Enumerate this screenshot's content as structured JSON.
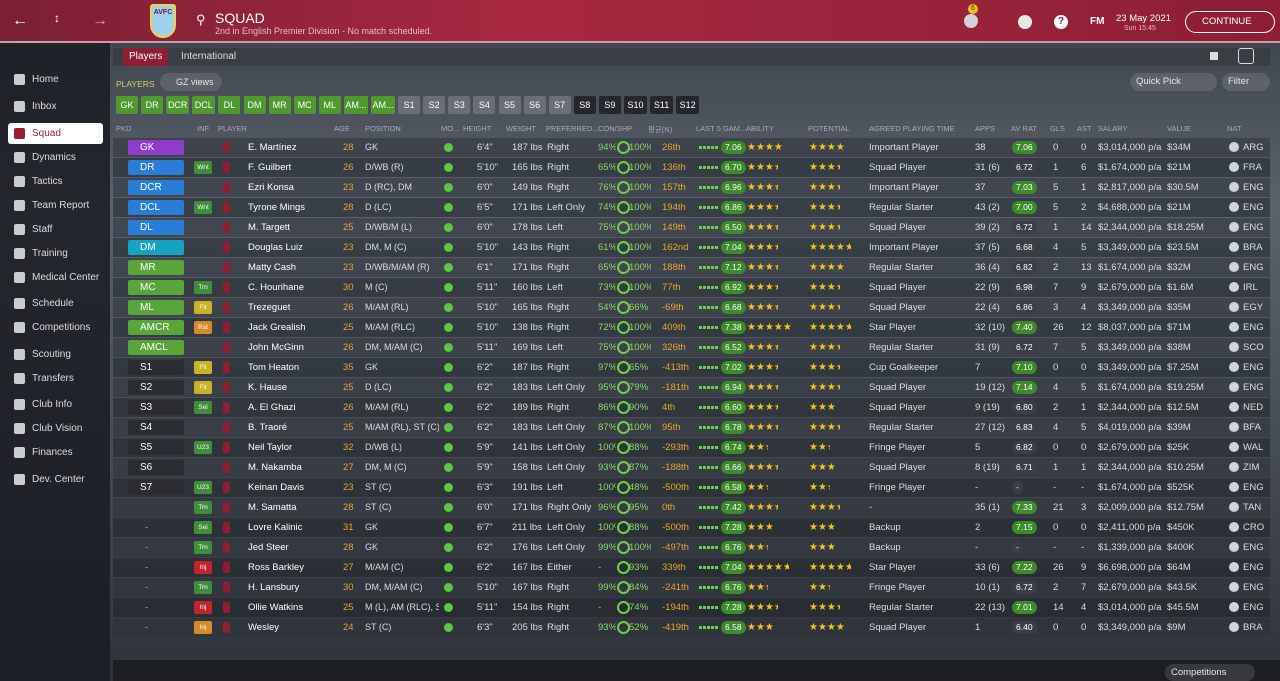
{
  "header": {
    "badge": "AVFC",
    "title": "SQUAD",
    "subtitle": "2nd in English Premier Division - No match scheduled.",
    "notifications": "6",
    "fm": "FM",
    "date": "23 May 2021",
    "time": "Sun 15:45",
    "continue": "CONTINUE"
  },
  "sidebar": [
    "Home",
    "Inbox",
    "Squad",
    "Dynamics",
    "Tactics",
    "Team Report",
    "Staff",
    "Training",
    "Medical Center",
    "Schedule",
    "Competitions",
    "Scouting",
    "Transfers",
    "Club Info",
    "Club Vision",
    "Finances",
    "Dev. Center"
  ],
  "tabs": [
    "Players",
    "International"
  ],
  "section": "PLAYERS",
  "view": "GZ views",
  "quick_pick": "Quick Pick",
  "filter": "Filter",
  "filter_buttons": [
    {
      "label": "GK",
      "color": "#4e9a2e"
    },
    {
      "label": "DR",
      "color": "#4e9a2e"
    },
    {
      "label": "DCR",
      "color": "#4e9a2e"
    },
    {
      "label": "DCL",
      "color": "#4e9a2e"
    },
    {
      "label": "DL",
      "color": "#4e9a2e"
    },
    {
      "label": "DM",
      "color": "#4e9a2e"
    },
    {
      "label": "MR",
      "color": "#4e9a2e"
    },
    {
      "label": "MC",
      "color": "#4e9a2e"
    },
    {
      "label": "ML",
      "color": "#4e9a2e"
    },
    {
      "label": "AM...",
      "color": "#4e9a2e"
    },
    {
      "label": "AM...",
      "color": "#4e9a2e"
    },
    {
      "label": "S1",
      "color": "#6a6e75"
    },
    {
      "label": "S2",
      "color": "#6a6e75"
    },
    {
      "label": "S3",
      "color": "#6a6e75"
    },
    {
      "label": "S4",
      "color": "#6a6e75"
    },
    {
      "label": "S5",
      "color": "#6a6e75"
    },
    {
      "label": "S6",
      "color": "#6a6e75"
    },
    {
      "label": "S7",
      "color": "#6a6e75"
    },
    {
      "label": "S8",
      "color": "#24272c"
    },
    {
      "label": "S9",
      "color": "#24272c"
    },
    {
      "label": "S10",
      "color": "#24272c"
    },
    {
      "label": "S11",
      "color": "#24272c"
    },
    {
      "label": "S12",
      "color": "#24272c"
    }
  ],
  "table": {
    "columns": [
      "PKD",
      "INF",
      "PLAYER",
      "AGE",
      "POSITION",
      "MO...",
      "HEIGHT",
      "WEIGHT",
      "PREFERRED...",
      "CON/SHP",
      "평균(N)",
      "LAST 5 GAM...",
      "ABILITY",
      "POTENTIAL",
      "AGREED PLAYING TIME",
      "APPS",
      "AV RAT",
      "GLS",
      "AST",
      "SALARY",
      "VALUE",
      "NAT"
    ],
    "rows": [
      {
        "pkd": "GK",
        "pc": "#8d3dc8",
        "inf": "",
        "ic": "",
        "name": "E. Martínez",
        "age": "28",
        "pos": "GK",
        "height": "6'4\"",
        "weight": "187 lbs",
        "foot": "Right",
        "con": "94%",
        "shp": "100%",
        "rank": "26th",
        "form": "7.06",
        "ability": 3.5,
        "potential": 3.5,
        "time": "Important Player",
        "apps": "38",
        "avrat": "7.06",
        "gls": "0",
        "ast": "0",
        "salary": "$3,014,000 p/a",
        "value": "$34M",
        "nat": "ARG"
      },
      {
        "pkd": "DR",
        "pc": "#2a7dd6",
        "inf": "Wnt",
        "ic": "#3f8f3a",
        "name": "F. Guilbert",
        "age": "26",
        "pos": "D/WB (R)",
        "height": "5'10\"",
        "weight": "165 lbs",
        "foot": "Right",
        "con": "65%",
        "shp": "100%",
        "rank": "136th",
        "form": "6.70",
        "ability": 3,
        "potential": 3,
        "time": "Squad Player",
        "apps": "31 (6)",
        "avrat": "6.72",
        "gls": "1",
        "ast": "6",
        "salary": "$1,674,000 p/a",
        "value": "$21M",
        "nat": "FRA"
      },
      {
        "pkd": "DCR",
        "pc": "#2a7dd6",
        "inf": "",
        "ic": "",
        "name": "Ezri Konsa",
        "age": "23",
        "pos": "D (RC), DM",
        "height": "6'0\"",
        "weight": "149 lbs",
        "foot": "Right",
        "con": "76%",
        "shp": "100%",
        "rank": "157th",
        "form": "6.96",
        "ability": 3,
        "potential": 3,
        "time": "Important Player",
        "apps": "37",
        "avrat": "7.03",
        "gls": "5",
        "ast": "1",
        "salary": "$2,817,000 p/a",
        "value": "$30.5M",
        "nat": "ENG"
      },
      {
        "pkd": "DCL",
        "pc": "#2a7dd6",
        "inf": "Wnt",
        "ic": "#3f8f3a",
        "name": "Tyrone Mings",
        "age": "28",
        "pos": "D (LC)",
        "height": "6'5\"",
        "weight": "171 lbs",
        "foot": "Left Only",
        "con": "74%",
        "shp": "100%",
        "rank": "194th",
        "form": "6.86",
        "ability": 3,
        "potential": 3,
        "time": "Regular Starter",
        "apps": "43 (2)",
        "avrat": "7.00",
        "gls": "5",
        "ast": "2",
        "salary": "$4,688,000 p/a",
        "value": "$21M",
        "nat": "ENG"
      },
      {
        "pkd": "DL",
        "pc": "#2a7dd6",
        "inf": "",
        "ic": "",
        "name": "M. Targett",
        "age": "25",
        "pos": "D/WB/M (L)",
        "height": "6'0\"",
        "weight": "178 lbs",
        "foot": "Left",
        "con": "75%",
        "shp": "100%",
        "rank": "149th",
        "form": "6.50",
        "ability": 3,
        "potential": 3,
        "time": "Squad Player",
        "apps": "39 (2)",
        "avrat": "6.72",
        "gls": "1",
        "ast": "14",
        "salary": "$2,344,000 p/a",
        "value": "$18.25M",
        "nat": "ENG"
      },
      {
        "pkd": "DM",
        "pc": "#16a3c2",
        "inf": "",
        "ic": "",
        "name": "Douglas Luiz",
        "age": "23",
        "pos": "DM, M (C)",
        "height": "5'10\"",
        "weight": "143 lbs",
        "foot": "Right",
        "con": "61%",
        "shp": "100%",
        "rank": "162nd",
        "form": "7.04",
        "ability": 3,
        "potential": 4,
        "time": "Important Player",
        "apps": "37 (5)",
        "avrat": "6.68",
        "gls": "4",
        "ast": "5",
        "salary": "$3,349,000 p/a",
        "value": "$23.5M",
        "nat": "BRA"
      },
      {
        "pkd": "MR",
        "pc": "#58a63a",
        "inf": "",
        "ic": "",
        "name": "Matty Cash",
        "age": "23",
        "pos": "D/WB/M/AM (R)",
        "height": "6'1\"",
        "weight": "171 lbs",
        "foot": "Right",
        "con": "65%",
        "shp": "100%",
        "rank": "188th",
        "form": "7.12",
        "ability": 3,
        "potential": 3.5,
        "time": "Regular Starter",
        "apps": "36 (4)",
        "avrat": "6.82",
        "gls": "2",
        "ast": "13",
        "salary": "$1,674,000 p/a",
        "value": "$32M",
        "nat": "ENG"
      },
      {
        "pkd": "MC",
        "pc": "#58a63a",
        "inf": "Trn",
        "ic": "#3f8f3a",
        "name": "C. Hourihane",
        "age": "30",
        "pos": "M (C)",
        "height": "5'11\"",
        "weight": "160 lbs",
        "foot": "Left",
        "con": "73%",
        "shp": "100%",
        "rank": "77th",
        "form": "6.92",
        "ability": 3,
        "potential": 3,
        "time": "Squad Player",
        "apps": "22 (9)",
        "avrat": "6.98",
        "gls": "7",
        "ast": "9",
        "salary": "$2,679,000 p/a",
        "value": "$1.6M",
        "nat": "IRL"
      },
      {
        "pkd": "ML",
        "pc": "#58a63a",
        "inf": "Fit",
        "ic": "#c9b226",
        "name": "Trezeguet",
        "age": "26",
        "pos": "M/AM (RL)",
        "height": "5'10\"",
        "weight": "165 lbs",
        "foot": "Right",
        "con": "54%",
        "shp": "66%",
        "rank": "-69th",
        "form": "6.68",
        "ability": 3,
        "potential": 3,
        "time": "Squad Player",
        "apps": "22 (4)",
        "avrat": "6.86",
        "gls": "3",
        "ast": "4",
        "salary": "$3,349,000 p/a",
        "value": "$35M",
        "nat": "EGY"
      },
      {
        "pkd": "AMCR",
        "pc": "#58a63a",
        "inf": "Rst",
        "ic": "#d88a2a",
        "name": "Jack Grealish",
        "age": "25",
        "pos": "M/AM (RLC)",
        "height": "5'10\"",
        "weight": "138 lbs",
        "foot": "Right",
        "con": "72%",
        "shp": "100%",
        "rank": "409th",
        "form": "7.38",
        "ability": 4.5,
        "potential": 4,
        "time": "Star Player",
        "apps": "32 (10)",
        "avrat": "7.40",
        "gls": "26",
        "ast": "12",
        "salary": "$8,037,000 p/a",
        "value": "$71M",
        "nat": "ENG"
      },
      {
        "pkd": "AMCL",
        "pc": "#58a63a",
        "inf": "",
        "ic": "",
        "name": "John McGinn",
        "age": "26",
        "pos": "DM, M/AM (C)",
        "height": "5'11\"",
        "weight": "169 lbs",
        "foot": "Left",
        "con": "75%",
        "shp": "100%",
        "rank": "326th",
        "form": "6.52",
        "ability": 3,
        "potential": 3,
        "time": "Regular Starter",
        "apps": "31 (9)",
        "avrat": "6.72",
        "gls": "7",
        "ast": "5",
        "salary": "$3,349,000 p/a",
        "value": "$38M",
        "nat": "SCO"
      },
      {
        "pkd": "S1",
        "pc": "#2a2c31",
        "inf": "Fit",
        "ic": "#c9b226",
        "name": "Tom Heaton",
        "age": "35",
        "pos": "GK",
        "height": "6'2\"",
        "weight": "187 lbs",
        "foot": "Right",
        "con": "97%",
        "shp": "65%",
        "rank": "-413th",
        "form": "7.02",
        "ability": 3,
        "potential": 3,
        "time": "Cup Goalkeeper",
        "apps": "7",
        "avrat": "7.10",
        "gls": "0",
        "ast": "0",
        "salary": "$3,349,000 p/a",
        "value": "$7.25M",
        "nat": "ENG"
      },
      {
        "pkd": "S2",
        "pc": "#2a2c31",
        "inf": "Fit",
        "ic": "#c9b226",
        "name": "K. Hause",
        "age": "25",
        "pos": "D (LC)",
        "height": "6'2\"",
        "weight": "183 lbs",
        "foot": "Left Only",
        "con": "95%",
        "shp": "79%",
        "rank": "-181th",
        "form": "6.94",
        "ability": 3,
        "potential": 3,
        "time": "Squad Player",
        "apps": "19 (12)",
        "avrat": "7.14",
        "gls": "4",
        "ast": "5",
        "salary": "$1,674,000 p/a",
        "value": "$19.25M",
        "nat": "ENG"
      },
      {
        "pkd": "S3",
        "pc": "#2a2c31",
        "inf": "Sel",
        "ic": "#3f8f3a",
        "name": "A. El Ghazi",
        "age": "26",
        "pos": "M/AM (RL)",
        "height": "6'2\"",
        "weight": "189 lbs",
        "foot": "Right",
        "con": "86%",
        "shp": "90%",
        "rank": "4th",
        "form": "6.60",
        "ability": 3,
        "potential": 2.5,
        "time": "Squad Player",
        "apps": "9 (19)",
        "avrat": "6.80",
        "gls": "2",
        "ast": "1",
        "salary": "$2,344,000 p/a",
        "value": "$12.5M",
        "nat": "NED"
      },
      {
        "pkd": "S4",
        "pc": "#2a2c31",
        "inf": "",
        "ic": "",
        "name": "B. Traoré",
        "age": "25",
        "pos": "M/AM (RL), ST (C)",
        "height": "6'2\"",
        "weight": "183 lbs",
        "foot": "Left Only",
        "con": "87%",
        "shp": "100%",
        "rank": "95th",
        "form": "6.78",
        "ability": 3,
        "potential": 3,
        "time": "Regular Starter",
        "apps": "27 (12)",
        "avrat": "6.83",
        "gls": "4",
        "ast": "5",
        "salary": "$4,019,000 p/a",
        "value": "$39M",
        "nat": "BFA"
      },
      {
        "pkd": "S5",
        "pc": "#2a2c31",
        "inf": "U23",
        "ic": "#3f8f3a",
        "name": "Neil Taylor",
        "age": "32",
        "pos": "D/WB (L)",
        "height": "5'9\"",
        "weight": "141 lbs",
        "foot": "Left Only",
        "con": "100%",
        "shp": "88%",
        "rank": "-293th",
        "form": "6.74",
        "ability": 2,
        "potential": 2,
        "time": "Fringe Player",
        "apps": "5",
        "avrat": "6.82",
        "gls": "0",
        "ast": "0",
        "salary": "$2,679,000 p/a",
        "value": "$25K",
        "nat": "WAL"
      },
      {
        "pkd": "S6",
        "pc": "#2a2c31",
        "inf": "",
        "ic": "",
        "name": "M. Nakamba",
        "age": "27",
        "pos": "DM, M (C)",
        "height": "5'9\"",
        "weight": "158 lbs",
        "foot": "Left Only",
        "con": "93%",
        "shp": "87%",
        "rank": "-188th",
        "form": "6.66",
        "ability": 3,
        "potential": 2.5,
        "time": "Squad Player",
        "apps": "8 (19)",
        "avrat": "6.71",
        "gls": "1",
        "ast": "1",
        "salary": "$2,344,000 p/a",
        "value": "$10.25M",
        "nat": "ZIM"
      },
      {
        "pkd": "S7",
        "pc": "#2a2c31",
        "inf": "U23",
        "ic": "#3f8f3a",
        "name": "Keinan Davis",
        "age": "23",
        "pos": "ST (C)",
        "height": "6'3\"",
        "weight": "191 lbs",
        "foot": "Left",
        "con": "100%",
        "shp": "48%",
        "rank": "-500th",
        "form": "6.58",
        "ability": 2,
        "potential": 2,
        "time": "Fringe Player",
        "apps": "-",
        "avrat": "-",
        "gls": "-",
        "ast": "-",
        "salary": "$1,674,000 p/a",
        "value": "$525K",
        "nat": "ENG"
      },
      {
        "pkd": "",
        "pc": "",
        "inf": "Trn",
        "ic": "#3f8f3a",
        "name": "M. Samatta",
        "age": "28",
        "pos": "ST (C)",
        "height": "6'0\"",
        "weight": "171 lbs",
        "foot": "Right Only",
        "con": "96%",
        "shp": "95%",
        "rank": "0th",
        "form": "7.42",
        "ability": 3,
        "potential": 3,
        "time": "-",
        "apps": "35 (1)",
        "avrat": "7.33",
        "gls": "21",
        "ast": "3",
        "salary": "$2,009,000 p/a",
        "value": "$12.75M",
        "nat": "TAN"
      },
      {
        "pkd": "-",
        "pc": "",
        "inf": "Sel",
        "ic": "#3f8f3a",
        "name": "Lovre Kalinic",
        "age": "31",
        "pos": "GK",
        "height": "6'7\"",
        "weight": "211 lbs",
        "foot": "Left Only",
        "con": "100%",
        "shp": "88%",
        "rank": "-500th",
        "form": "7.28",
        "ability": 2.5,
        "potential": 2.5,
        "time": "Backup",
        "apps": "2",
        "avrat": "7.15",
        "gls": "0",
        "ast": "0",
        "salary": "$2,411,000 p/a",
        "value": "$450K",
        "nat": "CRO"
      },
      {
        "pkd": "-",
        "pc": "",
        "inf": "Trn",
        "ic": "#3f8f3a",
        "name": "Jed Steer",
        "age": "28",
        "pos": "GK",
        "height": "6'2\"",
        "weight": "176 lbs",
        "foot": "Left Only",
        "con": "99%",
        "shp": "100%",
        "rank": "-497th",
        "form": "6.76",
        "ability": 2,
        "potential": 2.5,
        "time": "Backup",
        "apps": "-",
        "avrat": "-",
        "gls": "-",
        "ast": "-",
        "salary": "$1,339,000 p/a",
        "value": "$400K",
        "nat": "ENG"
      },
      {
        "pkd": "-",
        "pc": "",
        "inf": "Inj",
        "ic": "#c0262b",
        "name": "Ross Barkley",
        "age": "27",
        "pos": "M/AM (C)",
        "height": "6'2\"",
        "weight": "167 lbs",
        "foot": "Either",
        "con": "-",
        "shp": "93%",
        "rank": "339th",
        "form": "7.04",
        "ability": 4,
        "potential": 4,
        "time": "Star Player",
        "apps": "33 (6)",
        "avrat": "7.22",
        "gls": "26",
        "ast": "9",
        "salary": "$6,698,000 p/a",
        "value": "$64M",
        "nat": "ENG"
      },
      {
        "pkd": "-",
        "pc": "",
        "inf": "Trn",
        "ic": "#3f8f3a",
        "name": "H. Lansbury",
        "age": "30",
        "pos": "DM, M/AM (C)",
        "height": "5'10\"",
        "weight": "167 lbs",
        "foot": "Right",
        "con": "99%",
        "shp": "84%",
        "rank": "-241th",
        "form": "6.76",
        "ability": 2,
        "potential": 2,
        "time": "Fringe Player",
        "apps": "10 (1)",
        "avrat": "6.72",
        "gls": "2",
        "ast": "7",
        "salary": "$2,679,000 p/a",
        "value": "$43.5K",
        "nat": "ENG"
      },
      {
        "pkd": "-",
        "pc": "",
        "inf": "Inj",
        "ic": "#c0262b",
        "name": "Ollie Watkins",
        "age": "25",
        "pos": "M (L), AM (RLC), ST (C)",
        "height": "5'11\"",
        "weight": "154 lbs",
        "foot": "Right",
        "con": "-",
        "shp": "74%",
        "rank": "-194th",
        "form": "7.28",
        "ability": 3,
        "potential": 3,
        "time": "Regular Starter",
        "apps": "22 (13)",
        "avrat": "7.01",
        "gls": "14",
        "ast": "4",
        "salary": "$3,014,000 p/a",
        "value": "$45.5M",
        "nat": "ENG"
      },
      {
        "pkd": "-",
        "pc": "",
        "inf": "Inj",
        "ic": "#d88a2a",
        "name": "Wesley",
        "age": "24",
        "pos": "ST (C)",
        "height": "6'3\"",
        "weight": "205 lbs",
        "foot": "Right",
        "con": "93%",
        "shp": "52%",
        "rank": "-419th",
        "form": "6.58",
        "ability": 2.5,
        "potential": 3.5,
        "time": "Squad Player",
        "apps": "1",
        "avrat": "6.40",
        "gls": "0",
        "ast": "0",
        "salary": "$3,349,000 p/a",
        "value": "$9M",
        "nat": "BRA"
      }
    ]
  },
  "footer": "Competitions"
}
